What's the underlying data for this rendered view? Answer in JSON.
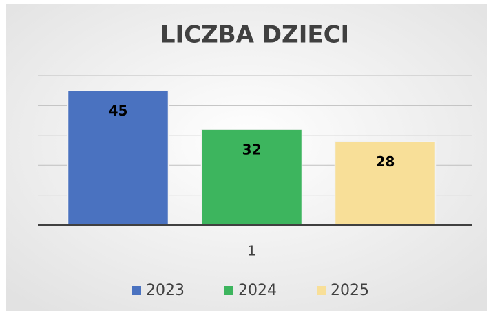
{
  "chart_data": {
    "type": "bar",
    "title": "LICZBA DZIECI",
    "categories": [
      "1"
    ],
    "series": [
      {
        "name": "2023",
        "color": "#4a72c0",
        "values": [
          45
        ]
      },
      {
        "name": "2024",
        "color": "#3db55e",
        "values": [
          32
        ]
      },
      {
        "name": "2025",
        "color": "#f8df98",
        "values": [
          28
        ]
      }
    ],
    "ylim": [
      0,
      50
    ],
    "yticks": [
      0,
      10,
      20,
      30,
      40,
      50
    ],
    "grid": true,
    "legend": "bottom"
  }
}
